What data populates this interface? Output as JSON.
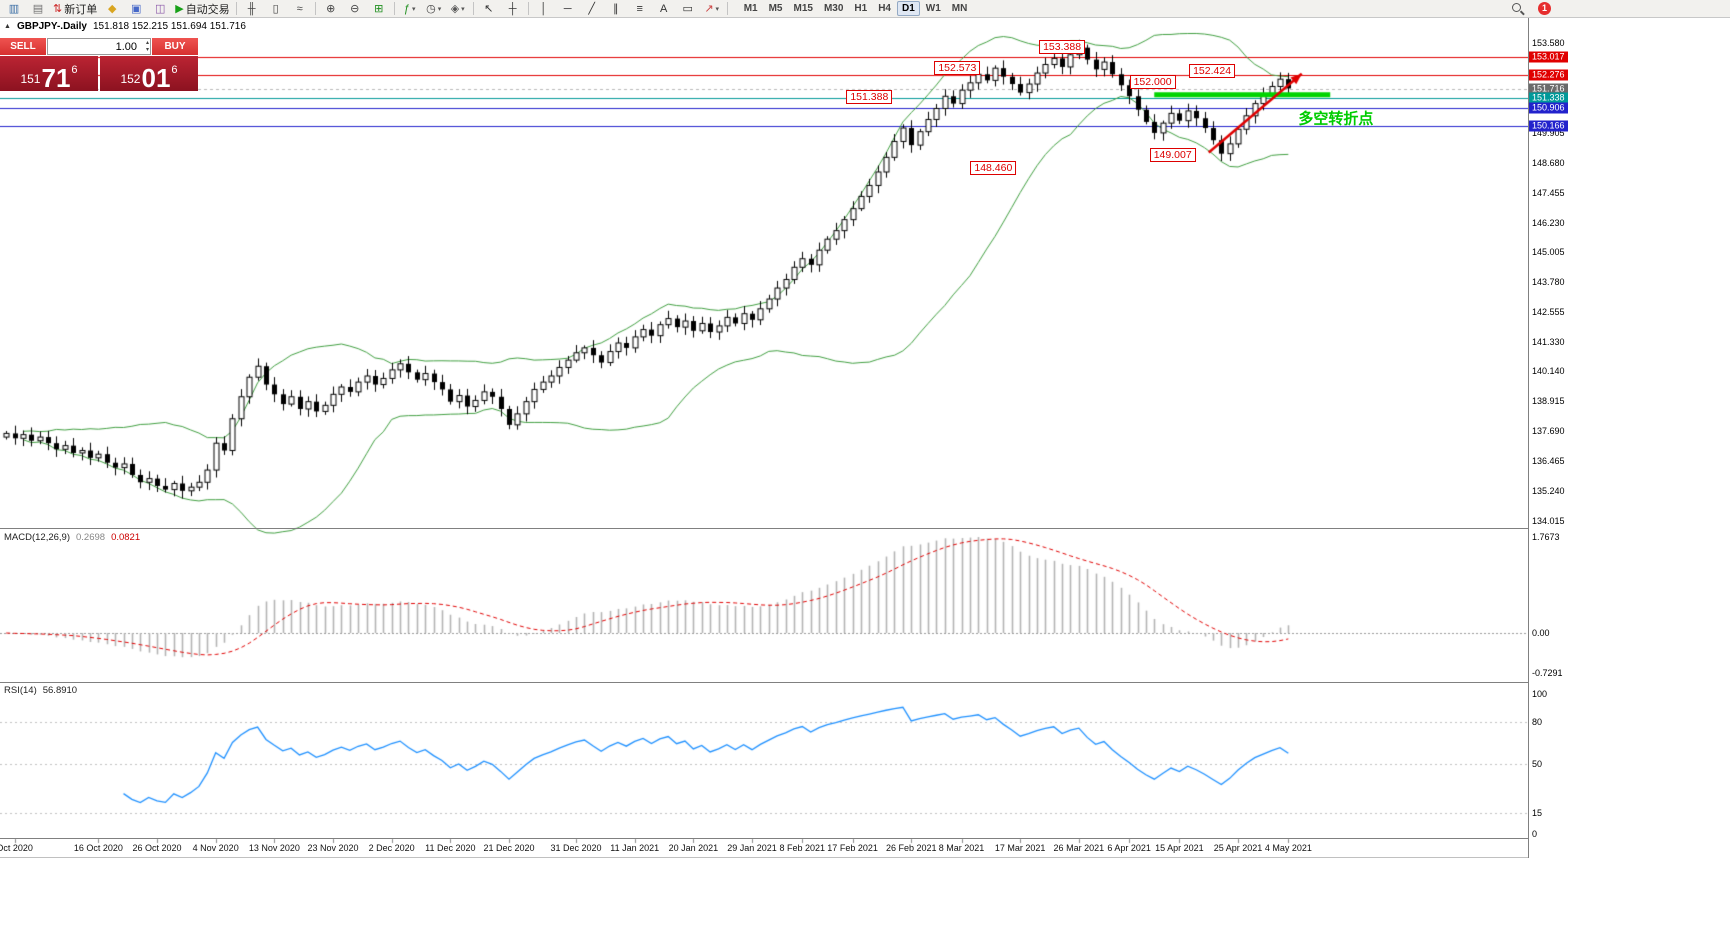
{
  "toolbar": {
    "items": [
      {
        "type": "icon",
        "name": "new-chart-icon",
        "glyph": "▥",
        "color": "#3b6ea5"
      },
      {
        "type": "icon",
        "name": "profiles-icon",
        "glyph": "▤",
        "color": "#707070"
      },
      {
        "type": "button",
        "name": "new-order-button",
        "glyph": "⇅",
        "color": "#cc2222",
        "label": "新订单"
      },
      {
        "type": "icon",
        "name": "market-watch-icon",
        "glyph": "◆",
        "color": "#d9a520"
      },
      {
        "type": "icon",
        "name": "data-window-icon",
        "glyph": "▣",
        "color": "#4668c8"
      },
      {
        "type": "icon",
        "name": "terminal-icon",
        "glyph": "◫",
        "color": "#8a56a8"
      },
      {
        "type": "button",
        "name": "auto-trading-button",
        "glyph": "▶",
        "color": "#18a018",
        "label": "自动交易"
      },
      {
        "type": "sep"
      },
      {
        "type": "icon",
        "name": "bar-chart-icon",
        "glyph": "╫",
        "color": "#444444"
      },
      {
        "type": "icon",
        "name": "candlestick-chart-icon",
        "glyph": "▯",
        "color": "#444444"
      },
      {
        "type": "icon",
        "name": "line-chart-icon",
        "glyph": "≈",
        "color": "#444444"
      },
      {
        "type": "sep"
      },
      {
        "type": "icon",
        "name": "zoom-in-icon",
        "glyph": "⊕",
        "color": "#444444"
      },
      {
        "type": "icon",
        "name": "zoom-out-icon",
        "glyph": "⊖",
        "color": "#444444"
      },
      {
        "type": "icon",
        "name": "tile-windows-icon",
        "glyph": "⊞",
        "color": "#1f8f1f"
      },
      {
        "type": "sep"
      },
      {
        "type": "icon",
        "name": "indicators-icon",
        "glyph": "ƒ",
        "color": "#1f8f1f",
        "caret": true
      },
      {
        "type": "icon",
        "name": "periods-icon",
        "glyph": "◷",
        "color": "#444444",
        "caret": true
      },
      {
        "type": "icon",
        "name": "templates-icon",
        "glyph": "◈",
        "color": "#555555",
        "caret": true
      },
      {
        "type": "sep"
      },
      {
        "type": "icon",
        "name": "cursor-icon",
        "glyph": "↖",
        "color": "#333333"
      },
      {
        "type": "icon",
        "name": "crosshair-icon",
        "glyph": "┼",
        "color": "#333333"
      },
      {
        "type": "sep"
      },
      {
        "type": "icon",
        "name": "vertical-line-icon",
        "glyph": "│",
        "color": "#333333"
      },
      {
        "type": "icon",
        "name": "horizontal-line-icon",
        "glyph": "─",
        "color": "#333333"
      },
      {
        "type": "icon",
        "name": "trendline-icon",
        "glyph": "╱",
        "color": "#333333"
      },
      {
        "type": "icon",
        "name": "channel-icon",
        "glyph": "∥",
        "color": "#333333"
      },
      {
        "type": "icon",
        "name": "fibonacci-icon",
        "glyph": "≡",
        "color": "#333333"
      },
      {
        "type": "icon",
        "name": "text-icon",
        "glyph": "A",
        "color": "#333333"
      },
      {
        "type": "icon",
        "name": "text-label-icon",
        "glyph": "▭",
        "color": "#333333"
      },
      {
        "type": "icon",
        "name": "arrows-icon",
        "glyph": "↗",
        "color": "#cc4444",
        "caret": true
      },
      {
        "type": "sep"
      }
    ],
    "timeframes": [
      "M1",
      "M5",
      "M15",
      "M30",
      "H1",
      "H4",
      "D1",
      "W1",
      "MN"
    ],
    "active_timeframe": "D1",
    "notification_count": "1"
  },
  "chart": {
    "title_symbol": "GBPJPY-.Daily",
    "title_ohlc": "151.818 152.215 151.694 151.716"
  },
  "quote_panel": {
    "sell_label": "SELL",
    "buy_label": "BUY",
    "volume": "1.00",
    "sell_price_small": "151",
    "sell_price_big": "71",
    "sell_price_sup": "6",
    "buy_price_small": "152",
    "buy_price_big": "01",
    "buy_price_sup": "6"
  },
  "chart_data": {
    "type": "candlestick",
    "symbol": "GBPJPY-",
    "period": "Daily",
    "ohlc_display": {
      "open": "151.818",
      "high": "152.215",
      "low": "151.694",
      "close": "151.716"
    },
    "y_axis": {
      "max": 153.58,
      "min": 134.015,
      "tick_labels": [
        "153.580",
        "149.905",
        "148.680",
        "147.455",
        "146.230",
        "145.005",
        "143.780",
        "142.555",
        "141.330",
        "140.140",
        "138.915",
        "137.690",
        "136.465",
        "135.240",
        "134.015"
      ]
    },
    "price_tags": [
      {
        "value": "153.017",
        "color": "#e00000"
      },
      {
        "value": "152.276",
        "color": "#e00000"
      },
      {
        "value": "151.716",
        "color": "#6a6a6a"
      },
      {
        "value": "151.338",
        "color": "#009999"
      },
      {
        "value": "150.906",
        "color": "#2222cc"
      },
      {
        "value": "150.166",
        "color": "#2222cc"
      }
    ],
    "h_lines": [
      {
        "price": 153.017,
        "color": "#e00000"
      },
      {
        "price": 152.276,
        "color": "#e00000"
      },
      {
        "price": 151.716,
        "color": "#b8b8b8",
        "dash": true
      },
      {
        "price": 151.338,
        "color": "#009999"
      },
      {
        "price": 150.906,
        "color": "#2222cc"
      },
      {
        "price": 150.166,
        "color": "#2222cc"
      }
    ],
    "green_segment": {
      "from_idx": 137,
      "to_idx": 158,
      "price": 151.46,
      "color": "#00d400"
    },
    "trend_arrow": {
      "from_idx": 143.5,
      "from_price": 149.1,
      "to_idx": 154.6,
      "to_price": 152.32,
      "color": "#e00000"
    },
    "annotations": [
      {
        "text": "153.388",
        "idx": 126,
        "price": 153.42
      },
      {
        "text": "152.573",
        "idx": 113.5,
        "price": 152.55
      },
      {
        "text": "152.424",
        "idx": 143.9,
        "price": 152.42
      },
      {
        "text": "152.000",
        "idx": 136.8,
        "price": 152.0
      },
      {
        "text": "151.388",
        "idx": 103,
        "price": 151.39
      },
      {
        "text": "149.007",
        "idx": 139.2,
        "price": 148.99
      },
      {
        "text": "148.460",
        "idx": 117.8,
        "price": 148.46
      }
    ],
    "cn_label": {
      "text": "多空转折点",
      "idx": 154.2,
      "price": 150.5,
      "color": "#00cc00"
    },
    "dates": [
      [
        "Oct 2020",
        1
      ],
      [
        "16 Oct 2020",
        11
      ],
      [
        "26 Oct 2020",
        18
      ],
      [
        "4 Nov 2020",
        25
      ],
      [
        "13 Nov 2020",
        32
      ],
      [
        "23 Nov 2020",
        39
      ],
      [
        "2 Dec 2020",
        46
      ],
      [
        "11 Dec 2020",
        53
      ],
      [
        "21 Dec 2020",
        60
      ],
      [
        "31 Dec 2020",
        68
      ],
      [
        "11 Jan 2021",
        75
      ],
      [
        "20 Jan 2021",
        82
      ],
      [
        "29 Jan 2021",
        89
      ],
      [
        "8 Feb 2021",
        95
      ],
      [
        "17 Feb 2021",
        101
      ],
      [
        "26 Feb 2021",
        108
      ],
      [
        "8 Mar 2021",
        114
      ],
      [
        "17 Mar 2021",
        121
      ],
      [
        "26 Mar 2021",
        128
      ],
      [
        "6 Apr 2021",
        134
      ],
      [
        "15 Apr 2021",
        140
      ],
      [
        "25 Apr 2021",
        147
      ],
      [
        "4 May 2021",
        153
      ]
    ],
    "closes": [
      137.6,
      137.4,
      137.55,
      137.3,
      137.45,
      137.2,
      136.95,
      137.1,
      136.8,
      136.9,
      136.6,
      136.75,
      136.4,
      136.2,
      136.35,
      135.9,
      135.6,
      135.75,
      135.45,
      135.3,
      135.55,
      135.25,
      135.4,
      135.6,
      136.1,
      137.2,
      136.9,
      138.2,
      139.1,
      139.9,
      140.35,
      139.6,
      139.2,
      138.8,
      139.1,
      138.6,
      138.9,
      138.5,
      138.75,
      139.2,
      139.5,
      139.3,
      139.7,
      139.95,
      139.6,
      139.85,
      140.2,
      140.45,
      140.1,
      139.8,
      140.05,
      139.7,
      139.4,
      138.9,
      139.15,
      138.7,
      138.95,
      139.3,
      139.1,
      138.6,
      137.95,
      138.4,
      138.9,
      139.4,
      139.7,
      139.95,
      140.3,
      140.6,
      140.9,
      141.1,
      140.8,
      140.5,
      140.95,
      141.3,
      141.1,
      141.55,
      141.85,
      141.6,
      142.05,
      142.3,
      141.95,
      142.2,
      141.8,
      142.1,
      141.75,
      142.0,
      142.35,
      142.1,
      142.5,
      142.25,
      142.7,
      143.1,
      143.55,
      143.9,
      144.4,
      144.75,
      144.5,
      145.1,
      145.55,
      145.9,
      146.35,
      146.8,
      147.3,
      147.75,
      148.3,
      148.9,
      149.55,
      150.1,
      149.4,
      149.95,
      150.45,
      150.9,
      151.4,
      151.1,
      151.65,
      151.95,
      152.3,
      152.05,
      152.55,
      152.2,
      151.9,
      151.55,
      151.9,
      152.35,
      152.7,
      152.95,
      152.6,
      153.1,
      153.39,
      152.9,
      152.5,
      152.8,
      152.3,
      151.85,
      151.4,
      150.85,
      150.35,
      149.9,
      150.3,
      150.7,
      150.4,
      150.8,
      150.5,
      150.1,
      149.6,
      149.05,
      149.45,
      150.05,
      150.6,
      151.1,
      151.45,
      151.8,
      152.1,
      151.72
    ],
    "bollinger": {
      "period": 20,
      "deviation": 2,
      "color": "#3f9e3f"
    },
    "indicators": {
      "macd": {
        "name": "MACD(12,26,9)",
        "value_main": "0.2698",
        "value_signal": "0.0821",
        "scale": [
          "1.7673",
          "0.00",
          "-0.7291"
        ],
        "histogram_color": "#b4b4b4",
        "signal_color": "#e00000"
      },
      "rsi": {
        "name": "RSI(14)",
        "value": "56.8910",
        "scale": [
          "100",
          "80",
          "50",
          "15",
          "0"
        ],
        "levels": [
          80,
          50,
          15
        ],
        "line_color": "#1e90ff"
      }
    }
  }
}
